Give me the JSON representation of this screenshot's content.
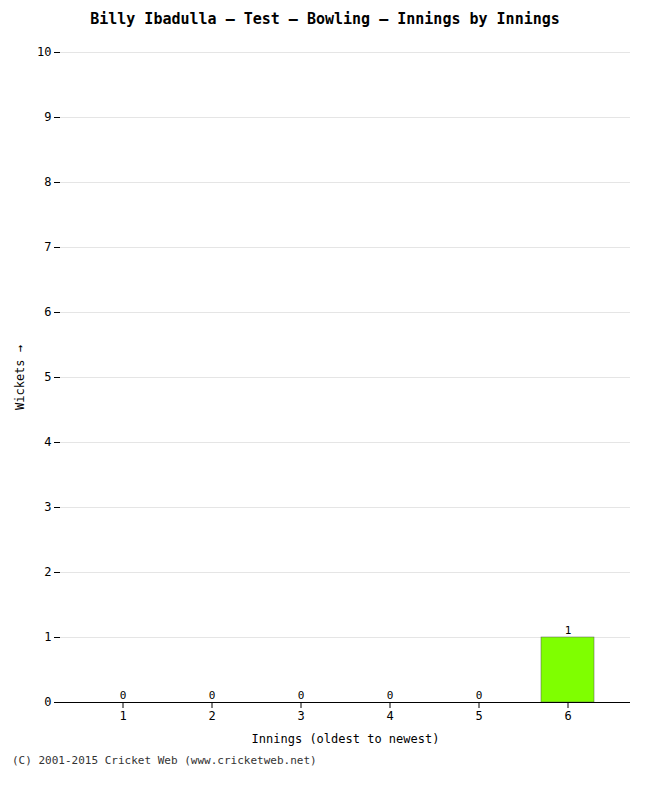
{
  "chart_data": {
    "type": "bar",
    "title": "Billy Ibadulla – Test – Bowling – Innings by Innings",
    "xlabel": "Innings (oldest to newest)",
    "ylabel": "Wickets",
    "categories": [
      1,
      2,
      3,
      4,
      5,
      6
    ],
    "values": [
      0,
      0,
      0,
      0,
      0,
      1
    ],
    "color": "#7fff00",
    "ylim": [
      0,
      10
    ],
    "yticks": [
      0,
      1,
      2,
      3,
      4,
      5,
      6,
      7,
      8,
      9,
      10
    ],
    "grid": true,
    "data_labels": true,
    "caption": "(C) 2001-2015 Cricket Web (www.cricketweb.net)"
  }
}
